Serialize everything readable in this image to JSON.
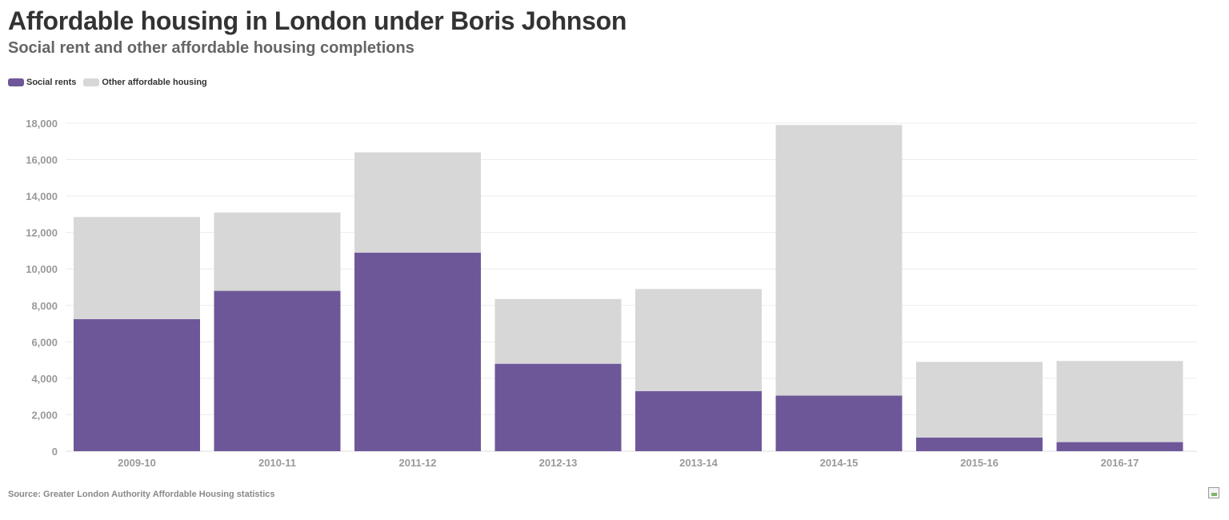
{
  "chart_data": {
    "type": "bar",
    "stacked": true,
    "title": "Affordable housing in London under Boris Johnson",
    "subtitle": "Social rent and other affordable housing completions",
    "categories": [
      "2009-10",
      "2010-11",
      "2011-12",
      "2012-13",
      "2013-14",
      "2014-15",
      "2015-16",
      "2016-17"
    ],
    "series": [
      {
        "name": "Social rents",
        "color": "#6e5799",
        "values": [
          7250,
          8800,
          10900,
          4800,
          3300,
          3050,
          750,
          500
        ]
      },
      {
        "name": "Other affordable housing",
        "color": "#d7d7d7",
        "values": [
          5600,
          4300,
          5500,
          3550,
          5600,
          14850,
          4150,
          4450
        ]
      }
    ],
    "ylim": [
      0,
      18000
    ],
    "yticks": [
      0,
      2000,
      4000,
      6000,
      8000,
      10000,
      12000,
      14000,
      16000,
      18000
    ],
    "ytick_labels": [
      "0",
      "2,000",
      "4,000",
      "6,000",
      "8,000",
      "10,000",
      "12,000",
      "14,000",
      "16,000",
      "18,000"
    ],
    "xlabel": "",
    "ylabel": "",
    "grid": true,
    "legend_position": "top-left",
    "source": "Source: Greater London Authority Affordable Housing statistics"
  }
}
